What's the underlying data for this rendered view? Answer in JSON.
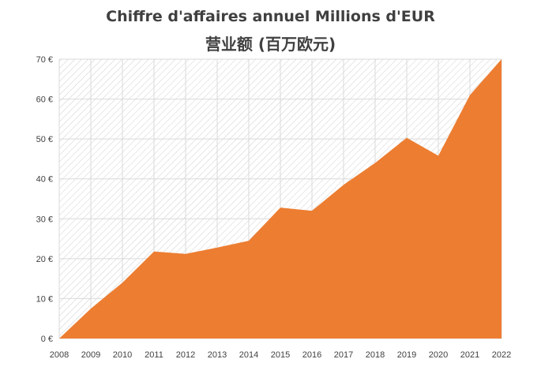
{
  "chart_data": {
    "type": "area",
    "title": "Chiffre d'affaires annuel Millions d'EUR",
    "subtitle": "营业额 (百万欧元)",
    "xlabel": "",
    "ylabel": "",
    "x": [
      "2008",
      "2009",
      "2010",
      "2011",
      "2012",
      "2013",
      "2014",
      "2015",
      "2016",
      "2017",
      "2018",
      "2019",
      "2020",
      "2021",
      "2022"
    ],
    "series": [
      {
        "name": "",
        "values": [
          0,
          7.5,
          14,
          21.8,
          21.2,
          22.8,
          24.5,
          32.8,
          32,
          38.5,
          44,
          50.3,
          45.8,
          61,
          70
        ]
      }
    ],
    "y_ticks": [
      "0 €",
      "10 €",
      "20 €",
      "30 €",
      "40 €",
      "50 €",
      "60 €",
      "70 €"
    ],
    "ylim": [
      0,
      70
    ],
    "grid": true,
    "legend": "none",
    "colors": {
      "area": "#ED7D31",
      "grid": "#D9D9D9",
      "hatch": "#D0D0D0"
    }
  }
}
